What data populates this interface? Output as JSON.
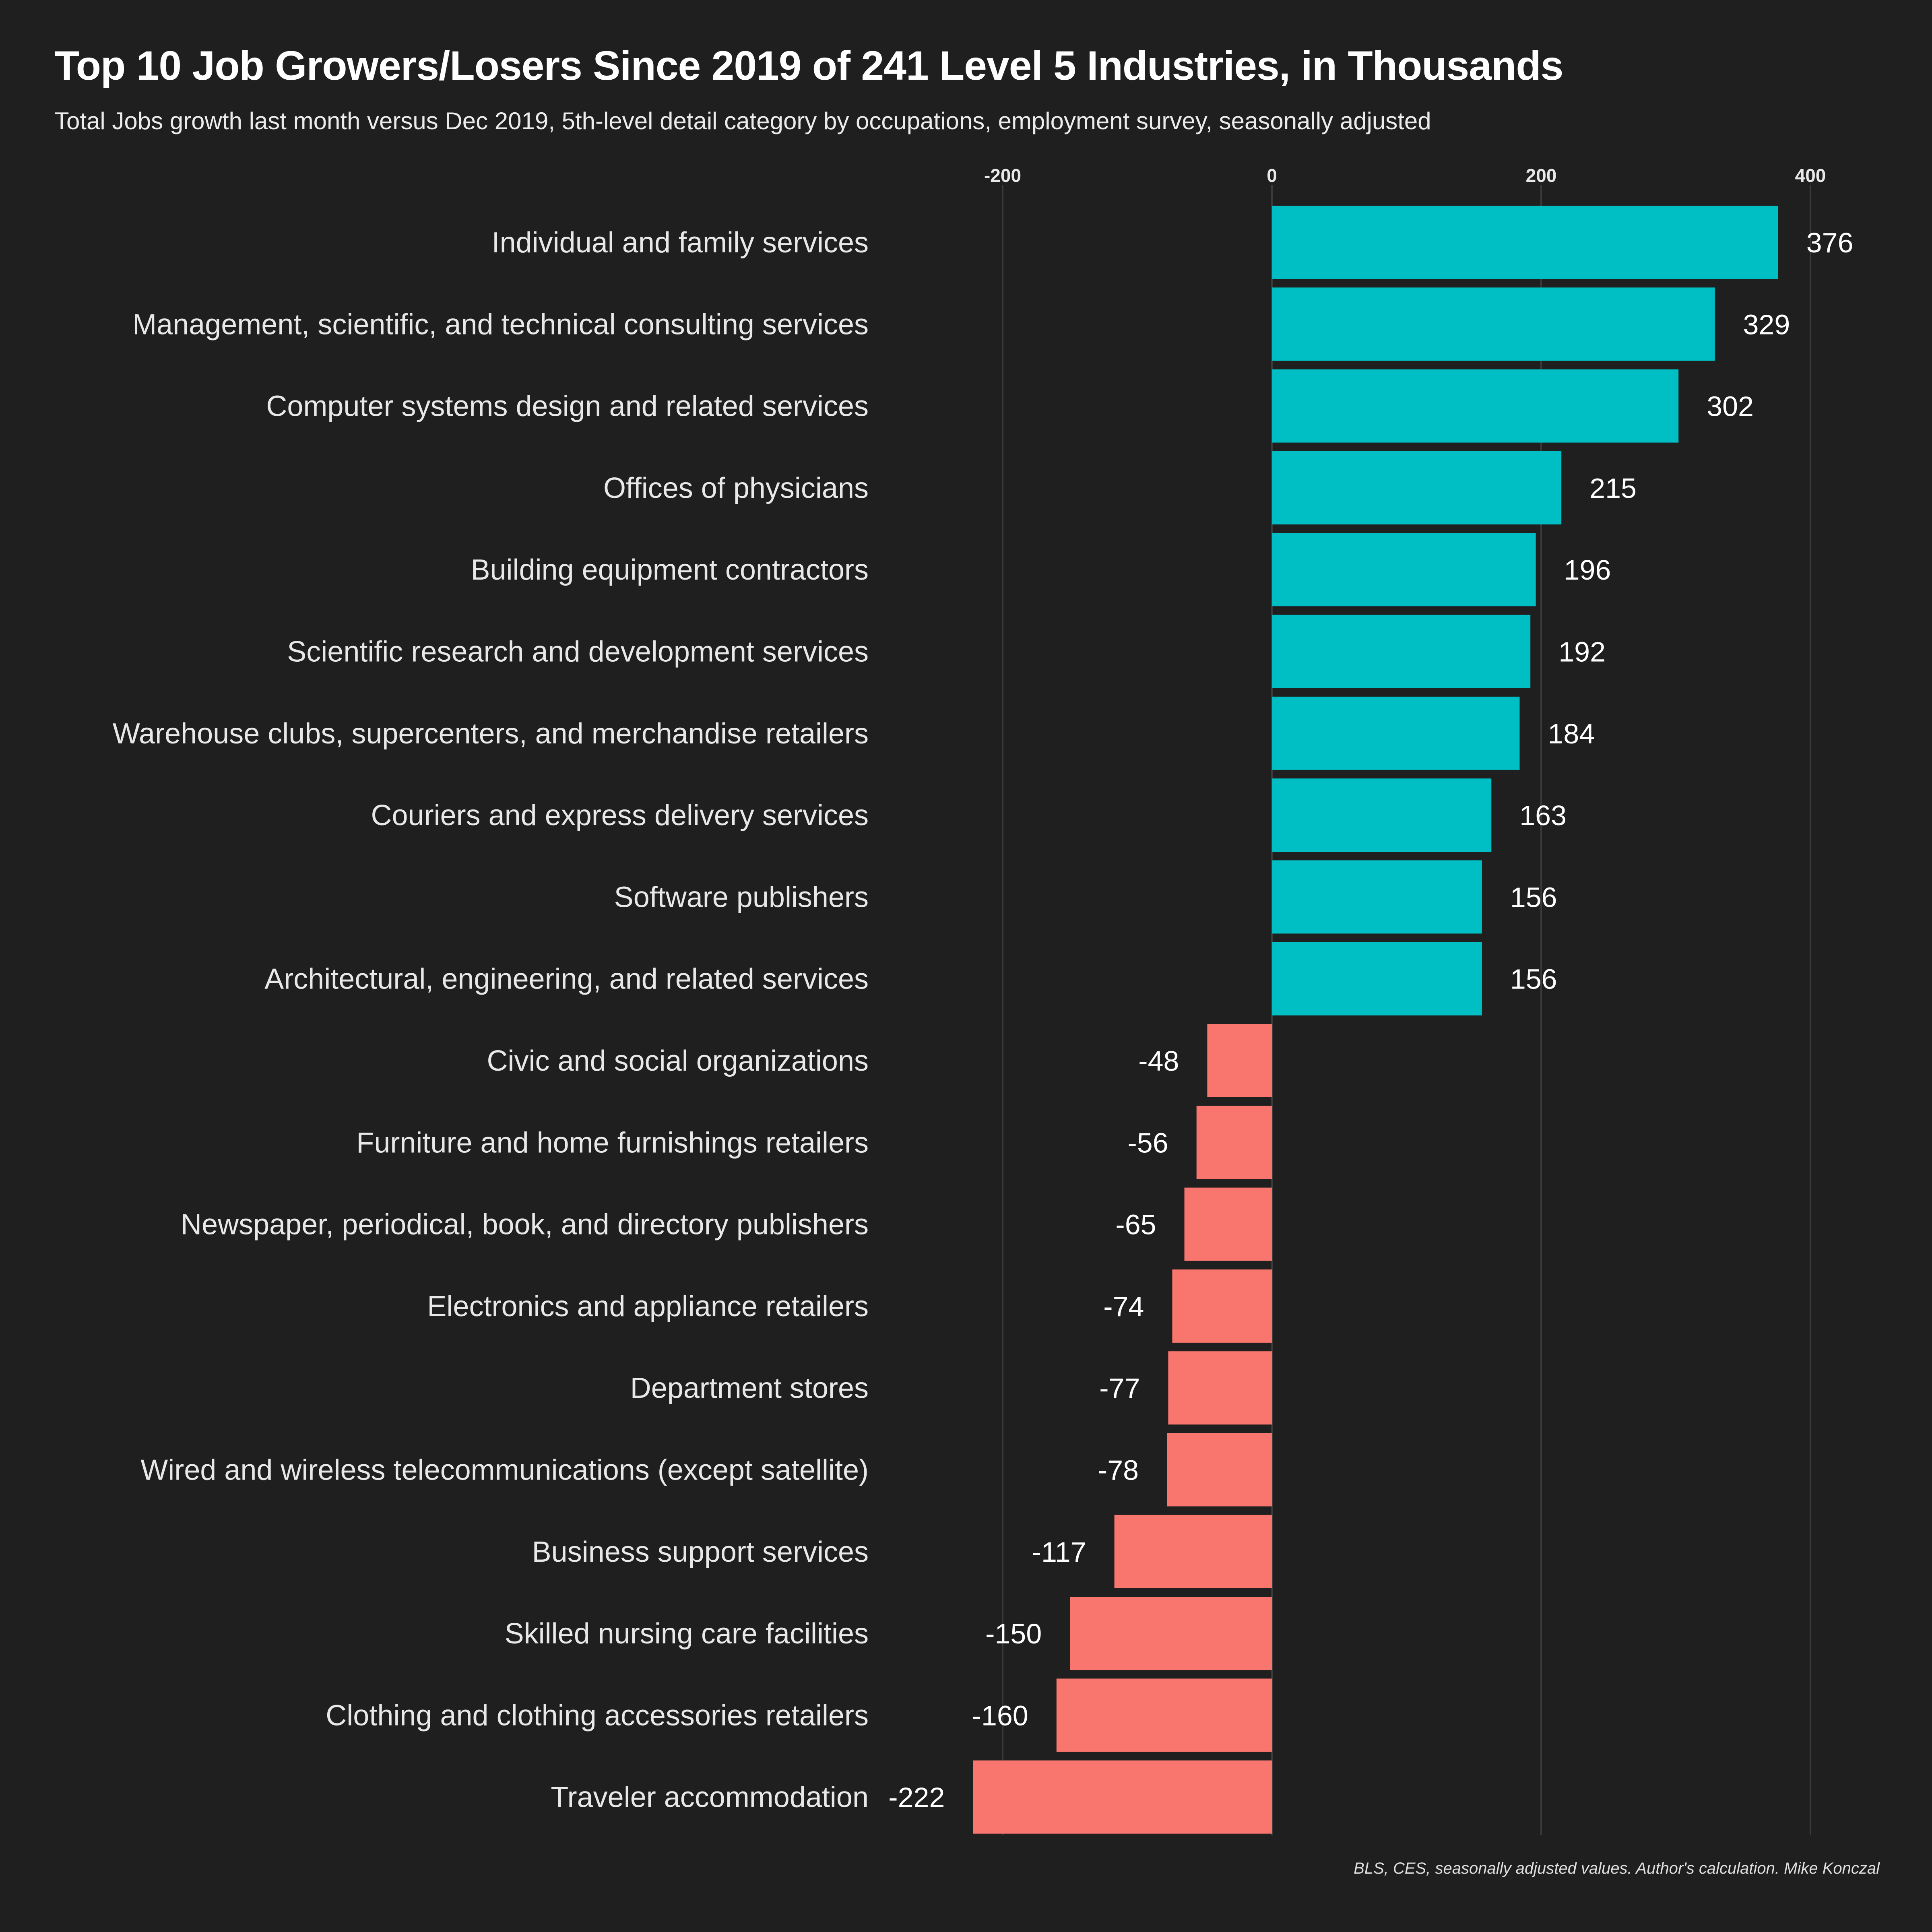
{
  "title": "Top 10 Job Growers/Losers Since 2019 of 241 Level 5 Industries, in Thousands",
  "subtitle": "Total Jobs growth last month versus Dec 2019, 5th-level detail category by occupations, employment survey, seasonally adjusted",
  "source": "BLS, CES, seasonally adjusted values. Author's calculation. Mike Konczal",
  "colors": {
    "background": "#1f1f1f",
    "positive": "#00bfc4",
    "negative": "#f8766d",
    "grid": "#3a3a3a"
  },
  "chart_data": {
    "type": "bar",
    "orientation": "horizontal",
    "title": "Top 10 Job Growers/Losers Since 2019 of 241 Level 5 Industries, in Thousands",
    "subtitle": "Total Jobs growth last month versus Dec 2019, 5th-level detail category by occupations, employment survey, seasonally adjusted",
    "xlabel": "",
    "ylabel": "",
    "xlim": [
      -250,
      420
    ],
    "xticks": [
      -200,
      0,
      200,
      400
    ],
    "xtick_labels": [
      "-200",
      "0",
      "200",
      "400"
    ],
    "grid": true,
    "legend": "none",
    "categories": [
      "Individual and family services",
      "Management, scientific, and technical consulting services",
      "Computer systems design and related services",
      "Offices of physicians",
      "Building equipment contractors",
      "Scientific research and development services",
      "Warehouse clubs, supercenters, and merchandise retailers",
      "Couriers and express delivery services",
      "Software publishers",
      "Architectural, engineering, and related services",
      "Civic and social organizations",
      "Furniture and home furnishings retailers",
      "Newspaper, periodical, book, and directory publishers",
      "Electronics and appliance retailers",
      "Department stores",
      "Wired and wireless telecommunications (except satellite)",
      "Business support services",
      "Skilled nursing care facilities",
      "Clothing and clothing accessories retailers",
      "Traveler accommodation"
    ],
    "values": [
      376,
      329,
      302,
      215,
      196,
      192,
      184,
      163,
      156,
      156,
      -48,
      -56,
      -65,
      -74,
      -77,
      -78,
      -117,
      -150,
      -160,
      -222
    ],
    "value_labels": [
      "376",
      "329",
      "302",
      "215",
      "196",
      "192",
      "184",
      "163",
      "156",
      "156",
      "-48",
      "-56",
      "-65",
      "-74",
      "-77",
      "-78",
      "-117",
      "-150",
      "-160",
      "-222"
    ]
  }
}
